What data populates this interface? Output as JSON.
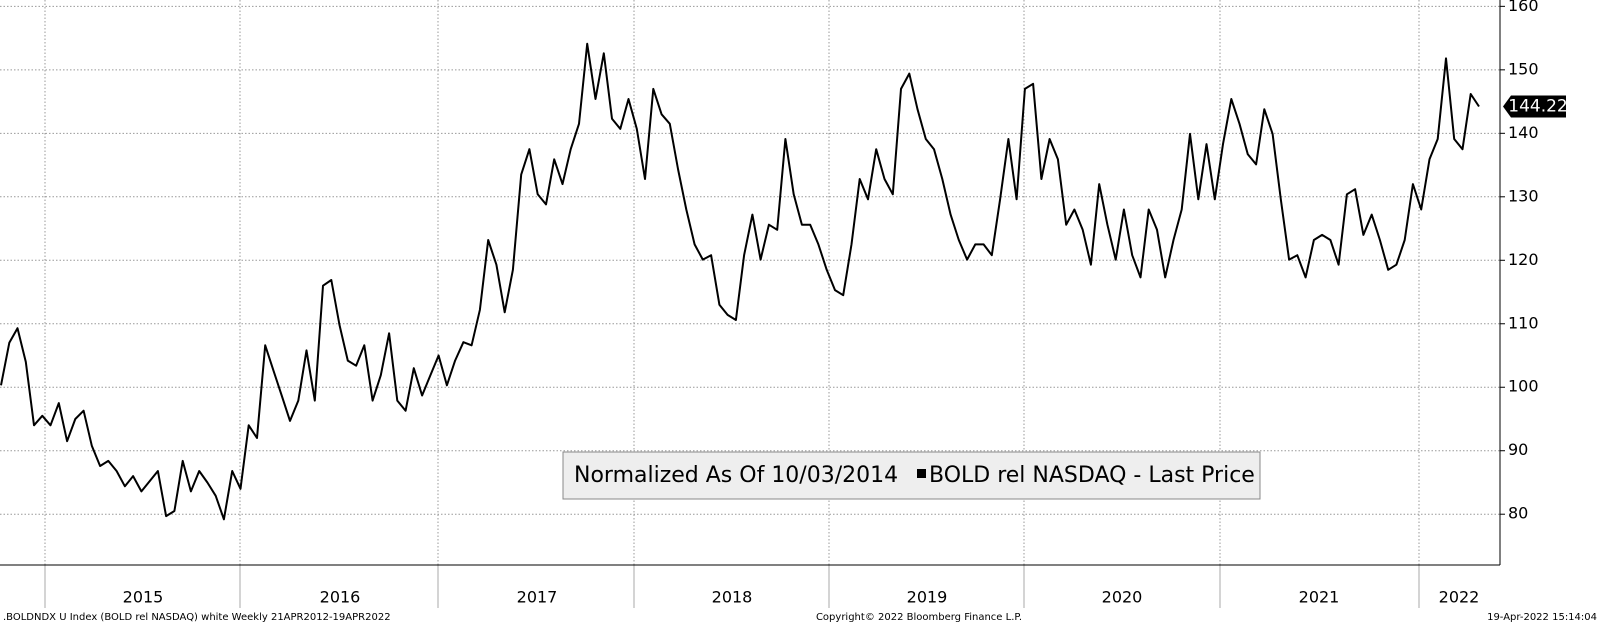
{
  "chart_data": {
    "type": "line",
    "annotation": "Normalized As Of 10/03/2014",
    "series": [
      {
        "name": "BOLD rel NASDAQ - Last Price",
        "color": "#000000",
        "values": [
          100.3,
          107,
          109.3,
          104,
          94,
          95.5,
          94,
          97.5,
          91.5,
          95,
          96.3,
          90.8,
          87.6,
          88.4,
          86.8,
          84.4,
          86,
          83.6,
          85.2,
          86.8,
          79.7,
          80.5,
          88.4,
          83.6,
          86.8,
          85,
          82.9,
          79.2,
          86.8,
          84,
          94,
          92,
          106.6,
          102.6,
          98.7,
          94.7,
          97.9,
          105.8,
          97.9,
          116,
          116.9,
          109.8,
          104.2,
          103.4,
          106.6,
          97.9,
          101.9,
          108.5,
          97.9,
          96.3,
          103,
          98.7,
          101.9,
          105,
          100.3,
          104.2,
          107.1,
          106.6,
          112.2,
          123.2,
          119.3,
          111.8,
          118.5,
          133.5,
          137.5,
          130.4,
          128.8,
          135.9,
          132,
          137.5,
          141.5,
          154.1,
          145.4,
          152.6,
          142.3,
          140.7,
          145.4,
          140.7,
          132.8,
          147,
          143,
          141.5,
          134.3,
          128,
          122.5,
          120.1,
          120.8,
          113,
          111.4,
          110.6,
          120.8,
          127.2,
          120.1,
          125.6,
          124.8,
          139.1,
          130.4,
          125.6,
          125.6,
          122.5,
          118.5,
          115.3,
          114.5,
          122.5,
          132.8,
          129.6,
          137.5,
          132.8,
          130.4,
          147,
          149.4,
          143.8,
          139.1,
          137.5,
          132.8,
          127.2,
          123.2,
          120.1,
          122.5,
          122.5,
          120.8,
          129.6,
          139.1,
          129.6,
          147,
          147.8,
          132.8,
          139.1,
          135.9,
          125.6,
          128,
          124.8,
          119.3,
          132,
          125.6,
          120.1,
          128,
          120.8,
          117.3,
          128,
          124.8,
          117.3,
          123.2,
          128,
          139.9,
          129.6,
          138.3,
          129.6,
          138.3,
          145.4,
          141.5,
          136.7,
          135.1,
          143.8,
          139.9,
          129.6,
          120.1,
          120.8,
          117.3,
          123.2,
          124,
          123.2,
          119.3,
          130.4,
          131.2,
          124,
          127.2,
          123.2,
          118.5,
          119.3,
          123.2,
          132,
          128,
          135.9,
          139.1,
          151.8,
          139.1,
          137.5,
          146.2,
          144.22
        ]
      }
    ],
    "x_labels": [
      "2015",
      "2016",
      "2017",
      "2018",
      "2019",
      "2020",
      "2021",
      "2022"
    ],
    "ylim": [
      72,
      161
    ],
    "yticks": [
      80,
      90,
      100,
      110,
      120,
      130,
      140,
      150,
      160
    ],
    "grid": true
  },
  "footer": {
    "left": ".BOLDNDX U Index (BOLD rel NASDAQ) white  Weekly 21APR2012-19APR2022",
    "center": "Copyright© 2022 Bloomberg Finance L.P.",
    "right": "19-Apr-2022 15:14:04"
  }
}
